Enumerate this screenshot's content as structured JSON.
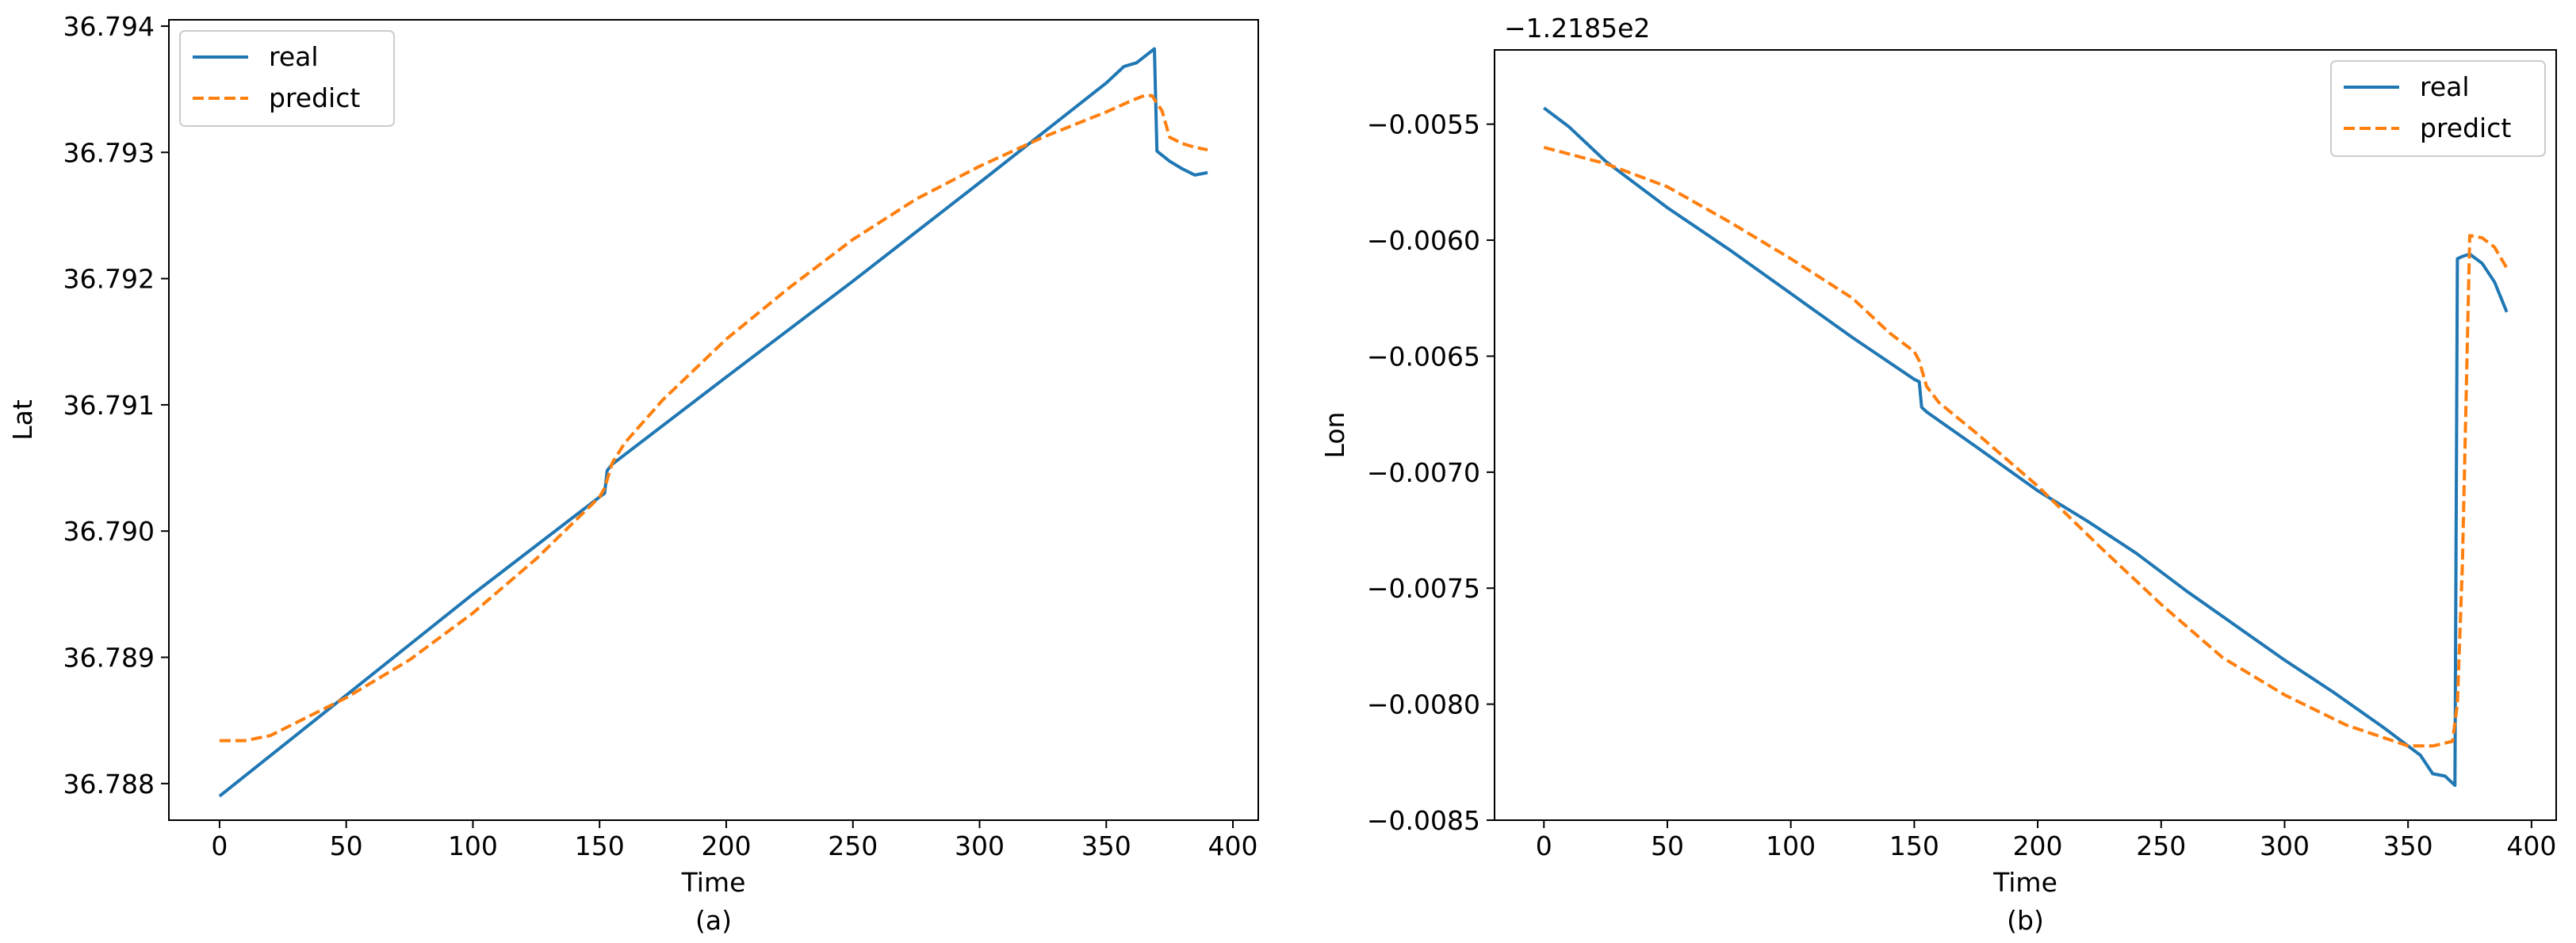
{
  "chart_data": [
    {
      "type": "line",
      "panel_label": "(a)",
      "xlabel": "Time",
      "ylabel": "Lat",
      "xlim": [
        -20,
        410
      ],
      "ylim": [
        36.78771,
        36.79405
      ],
      "xticks": [
        0,
        50,
        100,
        150,
        200,
        250,
        300,
        350,
        400
      ],
      "yticks": [
        36.788,
        36.789,
        36.79,
        36.791,
        36.792,
        36.793,
        36.794
      ],
      "ytick_labels": [
        "36.788",
        "36.789",
        "36.790",
        "36.791",
        "36.792",
        "36.793",
        "36.794"
      ],
      "legend_position": "upper-left",
      "grid": false,
      "series": [
        {
          "name": "real",
          "color": "#1f77b4",
          "style": "solid",
          "x": [
            0,
            50,
            100,
            150,
            152,
            153,
            155,
            200,
            250,
            300,
            350,
            357,
            362,
            369,
            370,
            375,
            380,
            385,
            390
          ],
          "y": [
            36.7879,
            36.7887,
            36.7895,
            36.79027,
            36.7903,
            36.79048,
            36.79053,
            36.79122,
            36.79198,
            36.79276,
            36.79355,
            36.79368,
            36.79371,
            36.79382,
            36.79301,
            36.79293,
            36.79287,
            36.79282,
            36.79284
          ]
        },
        {
          "name": "predict",
          "color": "#ff7f0e",
          "style": "dashed",
          "x": [
            0,
            10,
            20,
            30,
            50,
            75,
            100,
            125,
            150,
            152,
            155,
            160,
            175,
            200,
            225,
            250,
            275,
            300,
            325,
            350,
            360,
            365,
            368,
            372,
            375,
            380,
            385,
            390
          ],
          "y": [
            36.78834,
            36.78834,
            36.78838,
            36.78848,
            36.78868,
            36.78898,
            36.78935,
            36.78978,
            36.79027,
            36.79034,
            36.79054,
            36.7907,
            36.79104,
            36.79152,
            36.79193,
            36.79231,
            36.79263,
            36.79289,
            36.79312,
            36.79332,
            36.79341,
            36.79345,
            36.79345,
            36.79333,
            36.79312,
            36.79307,
            36.79304,
            36.79302
          ]
        }
      ]
    },
    {
      "type": "line",
      "panel_label": "(b)",
      "xlabel": "Time",
      "ylabel": "Lon",
      "y_offset_label": "−1.2185e2",
      "xlim": [
        -20,
        410
      ],
      "ylim": [
        -0.0085,
        -0.00518
      ],
      "xticks": [
        0,
        50,
        100,
        150,
        200,
        250,
        300,
        350,
        400
      ],
      "yticks": [
        -0.0085,
        -0.008,
        -0.0075,
        -0.007,
        -0.0065,
        -0.006,
        -0.0055
      ],
      "ytick_labels": [
        "−0.0085",
        "−0.0080",
        "−0.0075",
        "−0.0070",
        "−0.0065",
        "−0.0060",
        "−0.0055"
      ],
      "legend_position": "upper-right",
      "grid": false,
      "series": [
        {
          "name": "real",
          "color": "#1f77b4",
          "style": "solid",
          "x": [
            0,
            10,
            25,
            50,
            75,
            100,
            125,
            150,
            152,
            153,
            155,
            175,
            200,
            220,
            240,
            260,
            280,
            300,
            320,
            340,
            355,
            360,
            365,
            369,
            370,
            372,
            375,
            380,
            385,
            390
          ],
          "y": [
            -0.00543,
            -0.00551,
            -0.00566,
            -0.00586,
            -0.00604,
            -0.00623,
            -0.00642,
            -0.0066,
            -0.00661,
            -0.00672,
            -0.00674,
            -0.00689,
            -0.00708,
            -0.00721,
            -0.00735,
            -0.00751,
            -0.00766,
            -0.00781,
            -0.00795,
            -0.0081,
            -0.00822,
            -0.0083,
            -0.00831,
            -0.00835,
            -0.00608,
            -0.00607,
            -0.00606,
            -0.0061,
            -0.00618,
            -0.00631
          ]
        },
        {
          "name": "predict",
          "color": "#ff7f0e",
          "style": "dashed",
          "x": [
            0,
            25,
            50,
            75,
            100,
            125,
            140,
            150,
            152,
            155,
            160,
            175,
            200,
            225,
            250,
            275,
            300,
            325,
            350,
            360,
            368,
            370,
            372,
            375,
            380,
            385,
            390
          ],
          "y": [
            -0.0056,
            -0.00567,
            -0.00577,
            -0.00592,
            -0.00608,
            -0.00625,
            -0.0064,
            -0.00648,
            -0.00652,
            -0.00663,
            -0.0067,
            -0.00683,
            -0.00706,
            -0.00732,
            -0.00757,
            -0.0078,
            -0.00796,
            -0.00809,
            -0.00818,
            -0.00818,
            -0.00816,
            -0.008,
            -0.0074,
            -0.00598,
            -0.00599,
            -0.00603,
            -0.00612
          ]
        }
      ]
    }
  ]
}
